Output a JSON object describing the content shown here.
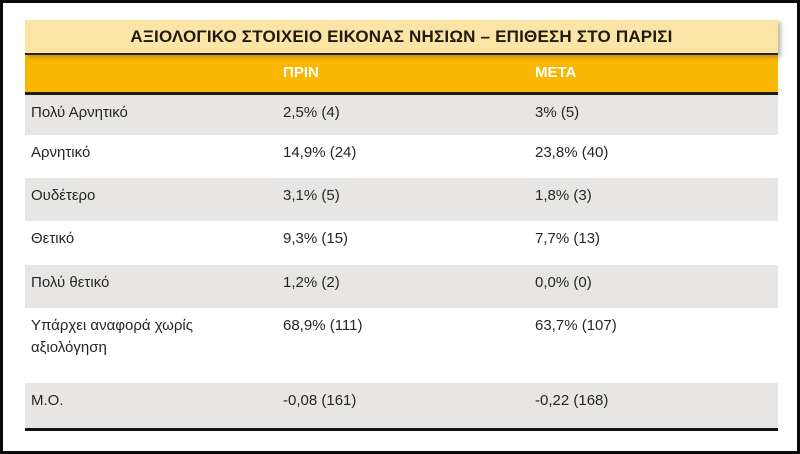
{
  "table": {
    "title": "ΑΞΙΟΛΟΓΙΚΟ ΣΤΟΙΧΕΙΟ ΕΙΚΟΝΑΣ ΝΗΣΙΩΝ – ΕΠΙΘΕΣΗ ΣΤΟ ΠΑΡΙΣΙ",
    "columns": {
      "before": "ΠΡΙΝ",
      "after": "ΜΕΤΑ"
    },
    "rows": [
      {
        "label": "Πολύ Αρνητικό",
        "before": "2,5% (4)",
        "after": "3% (5)"
      },
      {
        "label": "Αρνητικό",
        "before": "14,9% (24)",
        "after": "23,8% (40)"
      },
      {
        "label": "Ουδέτερο",
        "before": "3,1% (5)",
        "after": "1,8% (3)"
      },
      {
        "label": "Θετικό",
        "before": "9,3% (15)",
        "after": "7,7% (13)"
      },
      {
        "label": "Πολύ θετικό",
        "before": "1,2% (2)",
        "after": "0,0% (0)"
      },
      {
        "label": "Υπάρχει αναφορά χωρίς αξιολόγηση",
        "before": "68,9% (111)",
        "after": "63,7% (107)"
      },
      {
        "label": "Μ.Ο.",
        "before": "-0,08 (161)",
        "after": "-0,22 (168)"
      }
    ],
    "colors": {
      "title_bg": "#fbe5a6",
      "header_bg": "#f9b702",
      "stripe_bg": "#e7e6e4",
      "header_text": "#ffffff",
      "body_text": "#262626",
      "border_dark": "#1e1a0c",
      "frame_border": "#0b0b0b"
    }
  }
}
